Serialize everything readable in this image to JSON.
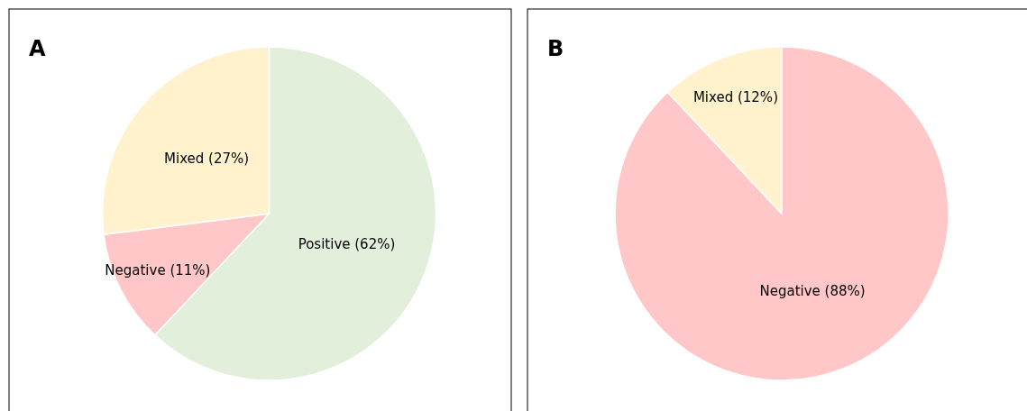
{
  "chart_data": [
    {
      "type": "pie",
      "title": "A",
      "categories": [
        "Positive (62%)",
        "Negative (11%)",
        "Mixed (27%)"
      ],
      "values": [
        62,
        11,
        27
      ],
      "colors": [
        "#e2efda",
        "#ffc7c7",
        "#fff2cc"
      ]
    },
    {
      "type": "pie",
      "title": "B",
      "categories": [
        "Negative (88%)",
        "Mixed (12%)"
      ],
      "values": [
        88,
        12
      ],
      "colors": [
        "#ffc7c7",
        "#fff2cc"
      ]
    }
  ]
}
